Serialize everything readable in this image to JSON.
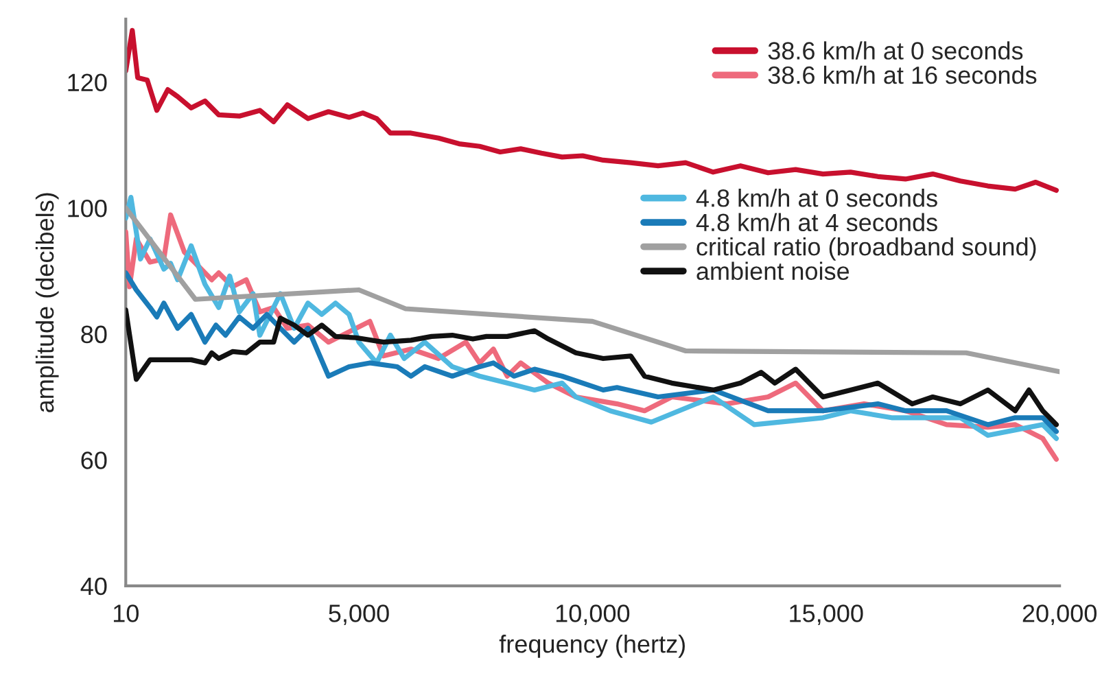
{
  "chart_data": {
    "type": "line",
    "xlabel": "frequency (hertz)",
    "ylabel": "amplitude (decibels)",
    "xlim": [
      10,
      20000
    ],
    "ylim": [
      40,
      130
    ],
    "xticks": [
      10,
      {
        "value": 5000,
        "label": "5,000"
      },
      {
        "value": 10000,
        "label": "10,000"
      },
      {
        "value": 15000,
        "label": "15,000"
      },
      {
        "value": 20000,
        "label": "20,000"
      }
    ],
    "yticks": [
      40,
      60,
      80,
      100,
      120
    ],
    "legend": "top right",
    "grid": false,
    "marker": "none",
    "line_style": "solid",
    "series": [
      {
        "name": "38.6 km/h at 0 seconds",
        "color": "#c8102e",
        "x": [
          10,
          150,
          265,
          470,
          675,
          910,
          1120,
          1410,
          1705,
          2000,
          2440,
          2880,
          3175,
          3470,
          3910,
          4350,
          4790,
          5085,
          5380,
          5675,
          6115,
          6705,
          7145,
          7585,
          8025,
          8465,
          8910,
          9350,
          9790,
          10230,
          10820,
          11405,
          11995,
          12585,
          13170,
          13760,
          14350,
          14935,
          15525,
          16110,
          16700,
          17285,
          17875,
          18465,
          19050,
          19490,
          19930
        ],
        "values": [
          121.8,
          128.2,
          120.7,
          120.3,
          115.5,
          118.8,
          117.7,
          115.9,
          117.0,
          114.8,
          114.6,
          115.5,
          113.7,
          116.4,
          114.2,
          115.3,
          114.4,
          115.1,
          114.2,
          111.9,
          111.9,
          111.1,
          110.2,
          109.8,
          108.9,
          109.4,
          108.7,
          108.1,
          108.3,
          107.6,
          107.2,
          106.7,
          107.2,
          105.7,
          106.7,
          105.6,
          106.1,
          105.4,
          105.7,
          105.0,
          104.6,
          105.4,
          104.3,
          103.5,
          103.0,
          104.1,
          102.8
        ]
      },
      {
        "name": "38.6 km/h at 16 seconds",
        "color": "#ee6a7c",
        "x": [
          10,
          90,
          235,
          530,
          825,
          970,
          1265,
          1560,
          1850,
          2000,
          2295,
          2590,
          2880,
          3175,
          3470,
          3910,
          4350,
          4940,
          5235,
          5525,
          6115,
          6705,
          7290,
          7585,
          7880,
          8175,
          8465,
          9055,
          9645,
          10525,
          11115,
          11700,
          12875,
          13760,
          14350,
          14935,
          15815,
          16700,
          17580,
          18465,
          19050,
          19640,
          19930
        ],
        "values": [
          96.2,
          87.5,
          95.1,
          91.4,
          91.9,
          98.9,
          93.0,
          90.8,
          88.6,
          89.7,
          87.5,
          88.6,
          83.5,
          84.2,
          80.9,
          81.4,
          78.7,
          80.9,
          82.0,
          76.5,
          77.6,
          76.1,
          78.7,
          75.4,
          77.6,
          73.3,
          75.4,
          72.2,
          70.0,
          68.9,
          67.8,
          70.0,
          68.9,
          70.0,
          72.2,
          67.8,
          68.9,
          67.8,
          65.6,
          65.2,
          65.6,
          63.4,
          60.1
        ]
      },
      {
        "name": "4.8 km/h at 0 seconds",
        "color": "#4fb8e0",
        "x": [
          10,
          120,
          325,
          530,
          825,
          970,
          1120,
          1410,
          1705,
          2000,
          2235,
          2440,
          2735,
          2880,
          3320,
          3615,
          3910,
          4205,
          4500,
          4790,
          5000,
          5380,
          5675,
          5970,
          6410,
          7000,
          7585,
          8175,
          8760,
          9350,
          9645,
          10380,
          11260,
          12585,
          13465,
          14935,
          15525,
          16405,
          17875,
          18465,
          19640,
          19930
        ],
        "values": [
          98.4,
          101.7,
          91.9,
          95.1,
          90.3,
          91.2,
          88.6,
          94.0,
          87.9,
          84.2,
          89.2,
          83.5,
          86.4,
          79.8,
          86.4,
          80.9,
          84.9,
          83.1,
          84.9,
          83.1,
          78.7,
          75.4,
          79.8,
          76.1,
          78.7,
          74.8,
          73.3,
          72.2,
          71.1,
          72.2,
          70.0,
          67.8,
          66.0,
          70.0,
          65.6,
          66.7,
          67.8,
          66.7,
          66.7,
          63.9,
          65.6,
          63.4
        ]
      },
      {
        "name": "4.8 km/h at 4 seconds",
        "color": "#1a7bb8",
        "x": [
          10,
          235,
          530,
          675,
          825,
          1120,
          1410,
          1705,
          1940,
          2145,
          2440,
          2735,
          3030,
          3320,
          3615,
          3910,
          4350,
          4790,
          5235,
          5820,
          6115,
          6410,
          7000,
          7585,
          7880,
          8320,
          8760,
          9350,
          10230,
          10525,
          11405,
          12585,
          13760,
          14935,
          16110,
          16700,
          17580,
          18465,
          19050,
          19640,
          19930
        ],
        "values": [
          89.7,
          87.0,
          84.2,
          82.7,
          84.9,
          80.9,
          83.1,
          78.7,
          81.4,
          79.8,
          82.7,
          80.9,
          83.1,
          80.9,
          78.7,
          80.9,
          73.3,
          74.8,
          75.4,
          74.8,
          73.3,
          74.8,
          73.3,
          74.8,
          75.4,
          73.3,
          74.4,
          73.3,
          71.1,
          71.5,
          70.0,
          71.1,
          67.8,
          67.8,
          68.9,
          67.8,
          67.8,
          65.6,
          66.7,
          66.7,
          64.5
        ]
      },
      {
        "name": "critical ratio (broadband sound)",
        "color": "#a0a0a0",
        "x": [
          10,
          1500,
          5000,
          6000,
          10000,
          12000,
          18000,
          20000
        ],
        "values": [
          100.0,
          85.5,
          87.0,
          84.0,
          82.0,
          77.3,
          77.0,
          74.0
        ]
      },
      {
        "name": "ambient noise",
        "color": "#111111",
        "x": [
          10,
          235,
          530,
          1410,
          1705,
          1850,
          2000,
          2295,
          2590,
          2880,
          3175,
          3320,
          3615,
          3910,
          4205,
          4500,
          4940,
          5525,
          6115,
          6555,
          7000,
          7440,
          7730,
          8175,
          8760,
          9055,
          9645,
          10230,
          10820,
          11115,
          11700,
          12585,
          13170,
          13610,
          13905,
          14350,
          14935,
          15525,
          16110,
          16845,
          17285,
          17875,
          18465,
          19050,
          19345,
          19640,
          19930
        ],
        "values": [
          83.8,
          72.8,
          75.9,
          75.9,
          75.4,
          77.0,
          76.1,
          77.2,
          77.0,
          78.7,
          78.7,
          82.5,
          81.4,
          79.8,
          81.4,
          79.6,
          79.4,
          78.7,
          79.0,
          79.6,
          79.8,
          79.2,
          79.6,
          79.6,
          80.5,
          79.2,
          77.0,
          76.1,
          76.5,
          73.3,
          72.2,
          71.1,
          72.2,
          73.9,
          72.2,
          74.4,
          70.0,
          71.1,
          72.2,
          68.9,
          70.0,
          68.9,
          71.1,
          67.8,
          71.1,
          67.8,
          65.6
        ]
      }
    ]
  }
}
